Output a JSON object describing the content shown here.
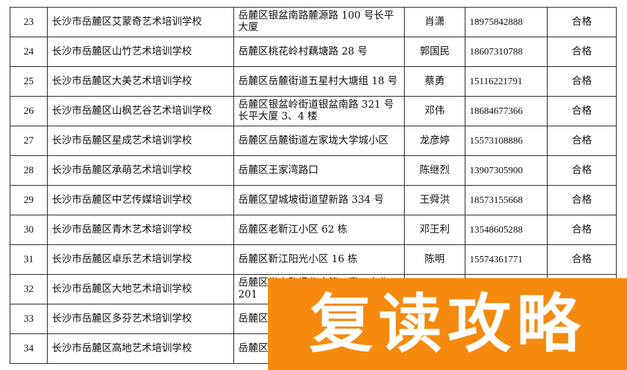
{
  "rows": [
    {
      "no": "23",
      "name": "长沙市岳麓区艾蒙奇艺术培训学校",
      "address": "岳麓区银盆南路麓源路 100 号长平大厦",
      "contact": "肖潇",
      "phone": "18975842888",
      "result": "合格"
    },
    {
      "no": "24",
      "name": "长沙市岳麓区山竹艺术培训学校",
      "address": "岳麓区桃花岭村藕塘路 28 号",
      "contact": "郭国民",
      "phone": "18607310788",
      "result": "合格"
    },
    {
      "no": "25",
      "name": "长沙市岳麓区大美艺术培训学校",
      "address": "岳麓区岳麓街道五星村大塘组 18 号",
      "contact": "蔡勇",
      "phone": "15116221791",
      "result": "合格"
    },
    {
      "no": "26",
      "name": "长沙市岳麓区山枫艺谷艺术培训学校",
      "address": "岳麓区银盆岭街道银盆南路 321 号长平大厦 3、4 楼",
      "contact": "邓伟",
      "phone": "18684677366",
      "result": "合格"
    },
    {
      "no": "27",
      "name": "长沙市岳麓区星成艺术培训学校",
      "address": "岳麓区岳麓街道左家垅大学城小区",
      "contact": "龙彦婷",
      "phone": "15573108886",
      "result": "合格"
    },
    {
      "no": "28",
      "name": "长沙市岳麓区承萌艺术培训学校",
      "address": "岳麓区王家湾路口",
      "contact": "陈继烈",
      "phone": "13907305900",
      "result": "合格"
    },
    {
      "no": "29",
      "name": "长沙市岳麓区中艺传媒培训学校",
      "address": "岳麓区望城坡街道望新路 334 号",
      "contact": "王舜洪",
      "phone": "18573155668",
      "result": "合格"
    },
    {
      "no": "30",
      "name": "长沙市岳麓区青木艺术培训学校",
      "address": "岳麓区老靳江小区 62 栋",
      "contact": "邓王利",
      "phone": "13548605288",
      "result": "合格"
    },
    {
      "no": "31",
      "name": "长沙市岳麓区卓乐艺术培训学校",
      "address": "岳麓区靳江阳光小区 16 栋",
      "contact": "陈明",
      "phone": "15574361771",
      "result": "合格"
    },
    {
      "no": "32",
      "name": "长沙市岳麓区大地艺术培训学校",
      "address": "岳麓区学士路枫华府第八寓二商业 201",
      "contact": "",
      "phone": "",
      "result": ""
    },
    {
      "no": "33",
      "name": "长沙市岳麓区多芬艺术培训学校",
      "address": "岳麓区",
      "contact": "",
      "phone": "",
      "result": ""
    },
    {
      "no": "34",
      "name": "长沙市岳麓区高地艺术培训学校",
      "address": "岳麓区 14 号",
      "contact": "",
      "phone": "",
      "result": ""
    }
  ],
  "watermark": {
    "text": "复读攻略",
    "color": "#F58A0F"
  }
}
